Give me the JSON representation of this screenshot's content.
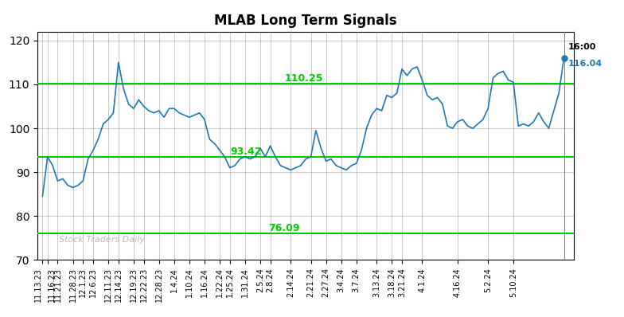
{
  "chart_data": {
    "type": "line",
    "title": "MLAB Long Term Signals",
    "watermark": "Stock Traders Daily",
    "categories": [
      "11.13.23",
      "11.16.23",
      null,
      "11.21.23",
      null,
      null,
      "11.28.23",
      null,
      "12.1.23",
      null,
      "12.6.23",
      null,
      null,
      "12.11.23",
      null,
      "12.14.23",
      null,
      null,
      "12.19.23",
      null,
      "12.22.23",
      null,
      null,
      "12.28.23",
      null,
      null,
      "1.4.24",
      null,
      null,
      "1.10.24",
      null,
      null,
      "1.16.24",
      null,
      null,
      "1.22.24",
      null,
      "1.25.24",
      null,
      null,
      "1.31.24",
      null,
      null,
      "2.5.24",
      null,
      "2.8.24",
      null,
      null,
      null,
      "2.14.24",
      null,
      null,
      null,
      "2.21.24",
      null,
      null,
      "2.27.24",
      null,
      null,
      "3.4.24",
      null,
      null,
      "3.7.24",
      null,
      null,
      null,
      "3.13.24",
      null,
      null,
      "3.18.24",
      null,
      "3.21.24",
      null,
      null,
      null,
      "4.1.24",
      null,
      null,
      null,
      null,
      null,
      null,
      "4.16.24",
      null,
      null,
      null,
      null,
      null,
      "5.2.24",
      null,
      null,
      null,
      null,
      "5.10.24",
      null,
      null,
      null,
      null,
      null,
      null,
      null,
      null,
      null,
      null
    ],
    "values": [
      84.5,
      93.5,
      91.5,
      88.0,
      88.5,
      87.0,
      86.5,
      87.0,
      88.0,
      93.0,
      95.0,
      97.5,
      101.0,
      102.0,
      103.5,
      115.0,
      109.0,
      105.5,
      104.5,
      106.5,
      105.0,
      104.0,
      103.5,
      104.0,
      102.5,
      104.5,
      104.5,
      103.5,
      103.0,
      102.5,
      103.0,
      103.5,
      102.0,
      97.5,
      96.5,
      95.0,
      93.5,
      91.0,
      91.5,
      93.0,
      93.5,
      93.0,
      93.5,
      95.5,
      93.5,
      96.0,
      93.5,
      91.5,
      91.0,
      90.5,
      91.0,
      91.5,
      93.0,
      93.5,
      99.5,
      95.5,
      92.5,
      93.0,
      91.5,
      91.0,
      90.5,
      91.5,
      92.0,
      95.0,
      100.0,
      103.0,
      104.5,
      104.0,
      107.5,
      107.0,
      108.0,
      113.5,
      112.0,
      113.5,
      114.0,
      111.0,
      107.5,
      106.5,
      107.0,
      105.5,
      100.5,
      100.0,
      101.5,
      102.0,
      100.5,
      100.0,
      101.0,
      102.0,
      104.5,
      111.5,
      112.5,
      113.0,
      111.0,
      110.5,
      100.5,
      101.0,
      100.5,
      101.5,
      103.5,
      101.5,
      100.0,
      104.0,
      108.0,
      116.04
    ],
    "hlines": [
      {
        "y": 110.25,
        "label": "110.25",
        "color": "#00cc00"
      },
      {
        "y": 93.42,
        "label": "93.42",
        "color": "#00cc00"
      },
      {
        "y": 76.09,
        "label": "76.09",
        "color": "#00cc00"
      }
    ],
    "annotations": [
      {
        "text": "16:00"
      },
      {
        "text": "116.04"
      }
    ],
    "ylim": [
      70,
      122
    ],
    "yticks": [
      70,
      80,
      90,
      100,
      110,
      120
    ],
    "grid": true
  }
}
